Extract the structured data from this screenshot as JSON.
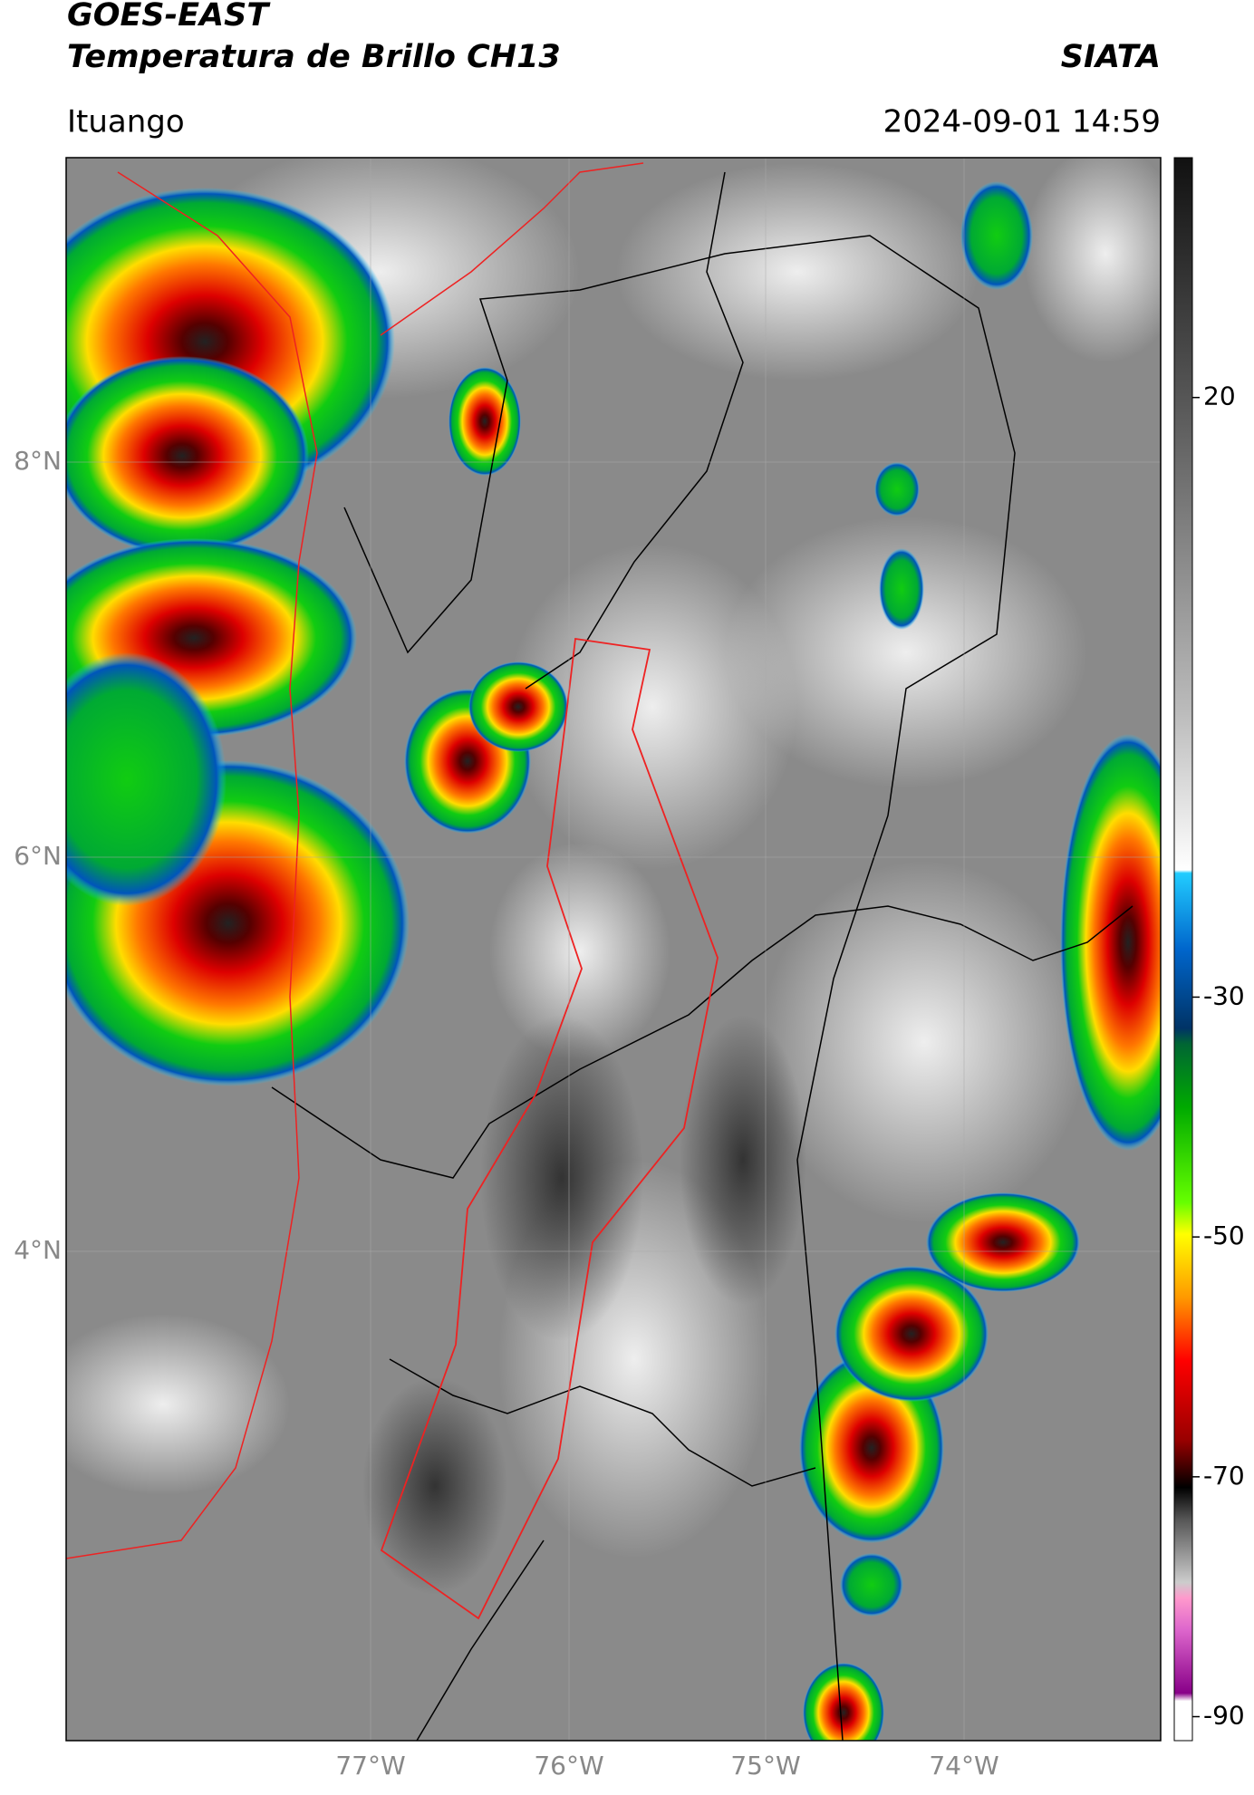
{
  "header": {
    "satellite": "GOES-EAST",
    "product": "Temperatura de Brillo CH13",
    "agency": "SIATA",
    "location": "Ituango",
    "datetime": "2024-09-01 14:59"
  },
  "map": {
    "lat_labels": [
      "8°N",
      "6°N",
      "4°N"
    ],
    "lon_labels": [
      "77°W",
      "76°W",
      "75°W",
      "74°W"
    ]
  },
  "colorbar": {
    "ticks": [
      20,
      -30,
      -50,
      -70,
      -90
    ],
    "lim": [
      -92,
      40
    ]
  }
}
